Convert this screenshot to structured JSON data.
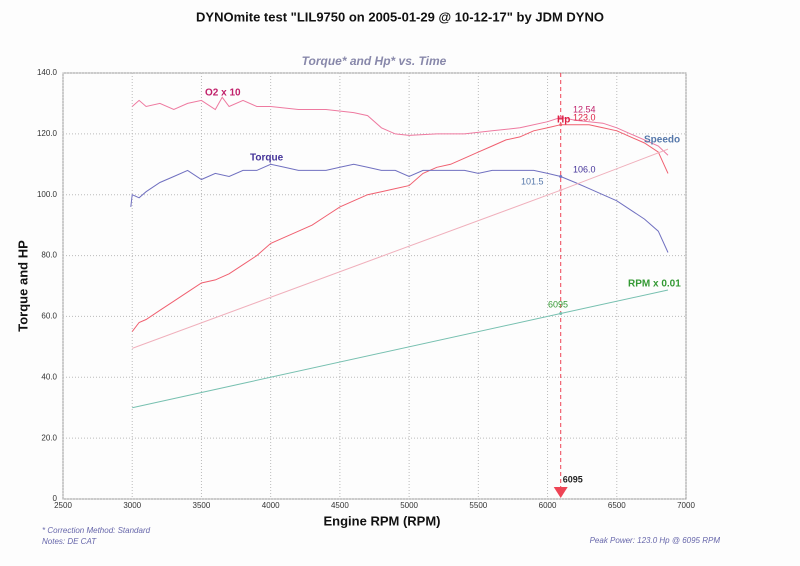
{
  "chart_data": {
    "type": "line",
    "title": "DYNOmite test \"LIL9750 on 2005-01-29 @ 10-12-17\" by JDM DYNO",
    "subtitle": "Torque* and Hp* vs. Time",
    "x_label": "Engine RPM (RPM)",
    "y_label": "Torque and HP",
    "xlim": [
      2500,
      7000
    ],
    "xticks": [
      2500,
      3000,
      3500,
      4000,
      4500,
      5000,
      5500,
      6000,
      6500,
      7000
    ],
    "ylim": [
      0,
      140
    ],
    "yticks": [
      0,
      {
        "value": 20,
        "label": "20.0"
      },
      {
        "value": 40,
        "label": "40.0"
      },
      {
        "value": 60,
        "label": "60.0"
      },
      {
        "value": 80,
        "label": "80.0"
      },
      {
        "value": 100,
        "label": "100.0"
      },
      {
        "value": 120,
        "label": "120.0"
      },
      {
        "value": 140,
        "label": "140.0"
      }
    ],
    "grid": true,
    "cursor": {
      "x": 6095,
      "label": "6095",
      "color": "#ee4455"
    },
    "series": [
      {
        "name": "O2 x 10",
        "color": "#ee7aa0",
        "label_color": "#c0206a",
        "x": [
          3000,
          3050,
          3100,
          3200,
          3300,
          3400,
          3500,
          3600,
          3650,
          3700,
          3800,
          3900,
          4000,
          4200,
          4400,
          4600,
          4700,
          4800,
          4900,
          5000,
          5200,
          5400,
          5600,
          5800,
          6000,
          6095,
          6200,
          6300,
          6400,
          6500,
          6600,
          6700,
          6800,
          6870
        ],
        "values": [
          129,
          131,
          129,
          130,
          128,
          130,
          131,
          128,
          132,
          129,
          131,
          129,
          129,
          128,
          128,
          127,
          126,
          122,
          120,
          119.5,
          120,
          120,
          121,
          122,
          124,
          125.4,
          124.5,
          124,
          123.5,
          122,
          120,
          118,
          116,
          113
        ],
        "cursor_value": 125.4,
        "cursor_label": "12.54"
      },
      {
        "name": "Hp",
        "color": "#f06070",
        "label_color": "#dd2244",
        "x": [
          3000,
          3050,
          3100,
          3200,
          3300,
          3400,
          3500,
          3600,
          3700,
          3800,
          3900,
          4000,
          4100,
          4200,
          4300,
          4400,
          4500,
          4600,
          4700,
          4800,
          4900,
          5000,
          5100,
          5200,
          5300,
          5400,
          5500,
          5600,
          5700,
          5800,
          5900,
          6000,
          6095,
          6200,
          6300,
          6400,
          6500,
          6600,
          6700,
          6800,
          6870
        ],
        "values": [
          55,
          58,
          59,
          62,
          65,
          68,
          71,
          72,
          74,
          77,
          80,
          84,
          86,
          88,
          90,
          93,
          96,
          98,
          100,
          101,
          102,
          103,
          107,
          109,
          110,
          112,
          114,
          116,
          118,
          119,
          121,
          122,
          123,
          123,
          123,
          122,
          121,
          119,
          117,
          114,
          107
        ],
        "cursor_value": 123,
        "cursor_label": "123.0"
      },
      {
        "name": "Torque",
        "color": "#7070c0",
        "label_color": "#443399",
        "x": [
          2990,
          3000,
          3050,
          3100,
          3200,
          3300,
          3400,
          3500,
          3600,
          3700,
          3800,
          3900,
          4000,
          4100,
          4200,
          4300,
          4400,
          4500,
          4600,
          4700,
          4800,
          4900,
          5000,
          5100,
          5200,
          5300,
          5400,
          5500,
          5600,
          5700,
          5800,
          5900,
          6000,
          6095,
          6200,
          6300,
          6400,
          6500,
          6600,
          6700,
          6800,
          6870
        ],
        "values": [
          96,
          100,
          99,
          101,
          104,
          106,
          108,
          105,
          107,
          106,
          108,
          108,
          110,
          109,
          108,
          108,
          108,
          109,
          110,
          109,
          108,
          108,
          106,
          108,
          108,
          108,
          108,
          107,
          108,
          108,
          108,
          108,
          107,
          106,
          104,
          102,
          100,
          98,
          95,
          92,
          88,
          81
        ],
        "cursor_value": 106,
        "cursor_label": "106.0"
      },
      {
        "name": "Speedo",
        "color": "#f0b0bc",
        "label_color": "#5577aa",
        "x": [
          3000,
          6095,
          6870
        ],
        "values": [
          49.5,
          101.5,
          115
        ],
        "cursor_value": 101.5
      },
      {
        "name": "RPM x 0.01",
        "color": "#77c0b0",
        "label_color": "#339933",
        "x": [
          3000,
          6095,
          6870
        ],
        "values": [
          30,
          60.95,
          68.7
        ],
        "cursor_value": 60.95,
        "cursor_label": "6095"
      }
    ],
    "footnotes": [
      "* Correction Method: Standard",
      "Notes: DE CAT"
    ],
    "summary": "Peak Power: 123.0 Hp @ 6095 RPM"
  }
}
